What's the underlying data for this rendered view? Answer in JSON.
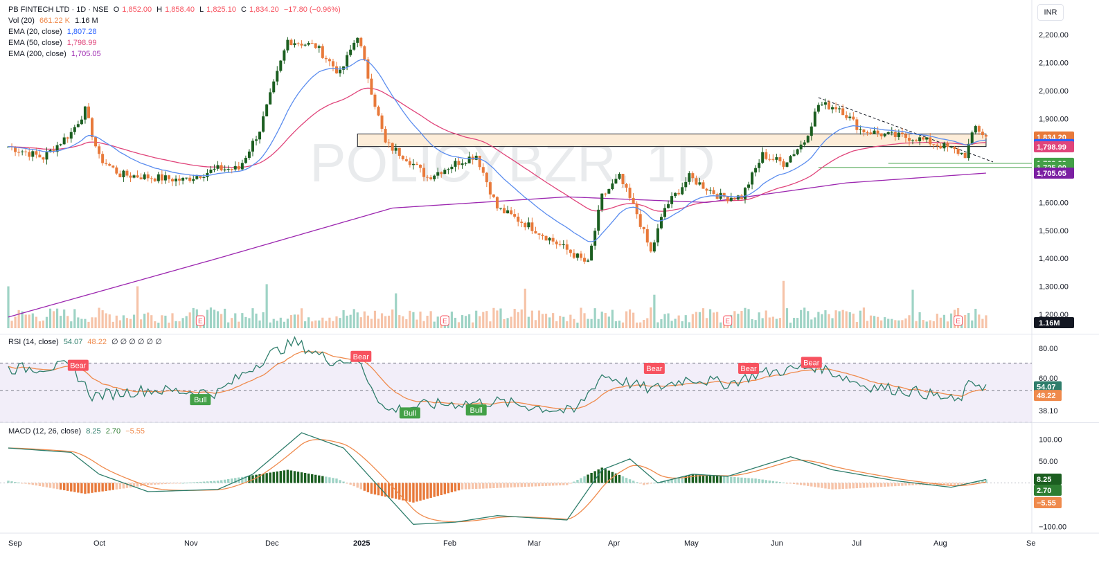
{
  "header": {
    "symbol_line": "PB FINTECH LTD · 1D · NSE",
    "o_label": "O",
    "o_value": "1,852.00",
    "h_label": "H",
    "h_value": "1,858.40",
    "l_label": "L",
    "l_value": "1,825.10",
    "c_label": "C",
    "c_value": "1,834.20",
    "change": "−17.80 (−0.96%)",
    "currency": "INR"
  },
  "indicators": {
    "vol_label": "Vol (20)",
    "vol_a": "661.22 K",
    "vol_b": "1.16 M",
    "ema20_label": "EMA (20, close)",
    "ema20_value": "1,807.28",
    "ema50_label": "EMA (50, close)",
    "ema50_value": "1,798.99",
    "ema200_label": "EMA (200, close)",
    "ema200_value": "1,705.05",
    "rsi_label": "RSI (14, close)",
    "rsi_value": "54.07",
    "rsi_ma": "48.22",
    "rsi_extra": "∅ ∅ ∅ ∅ ∅ ∅",
    "macd_label": "MACD (12, 26, close)",
    "macd_v1": "8.25",
    "macd_v2": "2.70",
    "macd_v3": "−5.55"
  },
  "watermark": "POLICYBZR, 1D",
  "colors": {
    "up": "#26a69a",
    "up_dark": "#1b5e20",
    "down": "#e8793a",
    "ema20": "#5b8def",
    "ema50": "#e0457b",
    "ema200": "#9c27b0",
    "rsi": "#2e7d6b",
    "rsi_ma": "#ef8a4c",
    "macd": "#2e7d6b",
    "signal": "#ef8a4c"
  },
  "chart_data": {
    "type": "candlestick",
    "x_ticks": [
      "Sep",
      "Oct",
      "Nov",
      "Dec",
      "2025",
      "Feb",
      "Mar",
      "Apr",
      "May",
      "Jun",
      "Jul",
      "Aug",
      "Se"
    ],
    "price_axis": {
      "ticks": [
        1200,
        1300,
        1400,
        1500,
        1600,
        1700,
        1800,
        1900,
        2000,
        2100,
        2200
      ],
      "tick_labels": [
        "1,200.00",
        "1,300.00",
        "1,400.00",
        "1,500.00",
        "1,600.00",
        "1,700.00",
        "1,800.00",
        "1,900.00",
        "2,000.00",
        "2,100.00",
        "2,200.00"
      ],
      "ylim": [
        1160,
        2250
      ]
    },
    "price_labels": [
      {
        "text": "1,834.20",
        "value": 1834.2,
        "color": "#e8793a"
      },
      {
        "text": "1,807.28",
        "value": 1807.28,
        "color": "#2962ff"
      },
      {
        "text": "1,798.99",
        "value": 1798.99,
        "color": "#e0457b"
      },
      {
        "text": "1,739.90",
        "value": 1739.9,
        "color": "#43a047"
      },
      {
        "text": "1,725.00",
        "value": 1725.0,
        "color": "#43a047"
      },
      {
        "text": "1,705.05",
        "value": 1705.05,
        "color": "#7b1fa2"
      }
    ],
    "volume_label": "1.16M",
    "close_anchors": [
      {
        "d": 0,
        "v": 1800
      },
      {
        "d": 10,
        "v": 1760
      },
      {
        "d": 18,
        "v": 1850
      },
      {
        "d": 22,
        "v": 1930
      },
      {
        "d": 26,
        "v": 1760
      },
      {
        "d": 32,
        "v": 1700
      },
      {
        "d": 50,
        "v": 1680
      },
      {
        "d": 60,
        "v": 1720
      },
      {
        "d": 66,
        "v": 1720
      },
      {
        "d": 72,
        "v": 1860
      },
      {
        "d": 80,
        "v": 2180
      },
      {
        "d": 88,
        "v": 2160
      },
      {
        "d": 95,
        "v": 2060
      },
      {
        "d": 100,
        "v": 2200
      },
      {
        "d": 104,
        "v": 2000
      },
      {
        "d": 108,
        "v": 1810
      },
      {
        "d": 114,
        "v": 1760
      },
      {
        "d": 120,
        "v": 1690
      },
      {
        "d": 128,
        "v": 1740
      },
      {
        "d": 134,
        "v": 1770
      },
      {
        "d": 140,
        "v": 1580
      },
      {
        "d": 150,
        "v": 1510
      },
      {
        "d": 160,
        "v": 1430
      },
      {
        "d": 166,
        "v": 1380
      },
      {
        "d": 170,
        "v": 1620
      },
      {
        "d": 175,
        "v": 1690
      },
      {
        "d": 180,
        "v": 1560
      },
      {
        "d": 184,
        "v": 1420
      },
      {
        "d": 188,
        "v": 1580
      },
      {
        "d": 195,
        "v": 1690
      },
      {
        "d": 204,
        "v": 1620
      },
      {
        "d": 210,
        "v": 1620
      },
      {
        "d": 216,
        "v": 1770
      },
      {
        "d": 222,
        "v": 1740
      },
      {
        "d": 228,
        "v": 1820
      },
      {
        "d": 232,
        "v": 1950
      },
      {
        "d": 238,
        "v": 1940
      },
      {
        "d": 244,
        "v": 1860
      },
      {
        "d": 252,
        "v": 1840
      },
      {
        "d": 260,
        "v": 1830
      },
      {
        "d": 268,
        "v": 1800
      },
      {
        "d": 274,
        "v": 1770
      },
      {
        "d": 277,
        "v": 1870
      },
      {
        "d": 280,
        "v": 1834
      }
    ],
    "ema200_anchors": [
      {
        "d": 0,
        "v": 1190
      },
      {
        "d": 60,
        "v": 1400
      },
      {
        "d": 110,
        "v": 1580
      },
      {
        "d": 160,
        "v": 1620
      },
      {
        "d": 200,
        "v": 1600
      },
      {
        "d": 240,
        "v": 1670
      },
      {
        "d": 280,
        "v": 1705
      }
    ],
    "zone": {
      "from_day": 100,
      "to_day": 280,
      "low": 1800,
      "high": 1845
    },
    "support_line": 1725,
    "support2": 1740,
    "trendline": [
      {
        "d": 232,
        "v": 1975
      },
      {
        "d": 282,
        "v": 1745
      }
    ],
    "earnings_markers": [
      {
        "day": 55,
        "text": "E"
      },
      {
        "day": 125,
        "text": "E"
      },
      {
        "day": 206,
        "text": "E"
      },
      {
        "day": 272,
        "text": "E"
      }
    ],
    "rsi": {
      "ticks": [
        38.1,
        51.61,
        60,
        80
      ],
      "tick_labels": [
        "38.10",
        "51.61",
        "60.00",
        "80.00"
      ],
      "band": [
        30,
        70
      ],
      "ylim": [
        32,
        86
      ],
      "anchors": [
        {
          "d": 0,
          "v": 66
        },
        {
          "d": 18,
          "v": 68
        },
        {
          "d": 24,
          "v": 48
        },
        {
          "d": 40,
          "v": 52
        },
        {
          "d": 60,
          "v": 50
        },
        {
          "d": 75,
          "v": 76
        },
        {
          "d": 82,
          "v": 84
        },
        {
          "d": 92,
          "v": 72
        },
        {
          "d": 100,
          "v": 72
        },
        {
          "d": 108,
          "v": 38
        },
        {
          "d": 120,
          "v": 42
        },
        {
          "d": 140,
          "v": 44
        },
        {
          "d": 162,
          "v": 37
        },
        {
          "d": 170,
          "v": 62
        },
        {
          "d": 184,
          "v": 52
        },
        {
          "d": 195,
          "v": 60
        },
        {
          "d": 206,
          "v": 56
        },
        {
          "d": 215,
          "v": 63
        },
        {
          "d": 232,
          "v": 68
        },
        {
          "d": 245,
          "v": 55
        },
        {
          "d": 262,
          "v": 50
        },
        {
          "d": 272,
          "v": 44
        },
        {
          "d": 276,
          "v": 58
        },
        {
          "d": 280,
          "v": 54
        }
      ],
      "labels": [
        {
          "text": "Bear",
          "day": 20,
          "value": 68,
          "type": "bear"
        },
        {
          "text": "Bull",
          "day": 55,
          "value": 45,
          "type": "bull"
        },
        {
          "text": "Bear",
          "day": 101,
          "value": 74,
          "type": "bear"
        },
        {
          "text": "Bull",
          "day": 115,
          "value": 36,
          "type": "bull"
        },
        {
          "text": "Bull",
          "day": 134,
          "value": 38,
          "type": "bull"
        },
        {
          "text": "Bear",
          "day": 185,
          "value": 66,
          "type": "bear"
        },
        {
          "text": "Bear",
          "day": 212,
          "value": 66,
          "type": "bear"
        },
        {
          "text": "Bear",
          "day": 230,
          "value": 70,
          "type": "bear"
        }
      ],
      "value_labels": [
        {
          "text": "54.07",
          "value": 54.07,
          "color": "#2e7d6b"
        },
        {
          "text": "48.22",
          "value": 48.22,
          "color": "#ef8a4c"
        }
      ]
    },
    "macd": {
      "ticks": [
        -100,
        50,
        100
      ],
      "tick_labels": [
        "−100.00",
        "50.00",
        "100.00"
      ],
      "ylim": [
        -112,
        115
      ],
      "macd_anchors": [
        {
          "d": 0,
          "v": 80
        },
        {
          "d": 18,
          "v": 70
        },
        {
          "d": 26,
          "v": 20
        },
        {
          "d": 40,
          "v": -20
        },
        {
          "d": 60,
          "v": -15
        },
        {
          "d": 70,
          "v": 20
        },
        {
          "d": 84,
          "v": 115
        },
        {
          "d": 96,
          "v": 80
        },
        {
          "d": 104,
          "v": 10
        },
        {
          "d": 116,
          "v": -95
        },
        {
          "d": 128,
          "v": -90
        },
        {
          "d": 140,
          "v": -75
        },
        {
          "d": 160,
          "v": -85
        },
        {
          "d": 170,
          "v": 30
        },
        {
          "d": 178,
          "v": 55
        },
        {
          "d": 186,
          "v": 0
        },
        {
          "d": 196,
          "v": 20
        },
        {
          "d": 206,
          "v": 15
        },
        {
          "d": 224,
          "v": 60
        },
        {
          "d": 236,
          "v": 30
        },
        {
          "d": 254,
          "v": 5
        },
        {
          "d": 270,
          "v": -10
        },
        {
          "d": 280,
          "v": 8
        }
      ],
      "hist_anchors": [
        {
          "d": 0,
          "v": 5
        },
        {
          "d": 22,
          "v": -25
        },
        {
          "d": 40,
          "v": -5
        },
        {
          "d": 60,
          "v": 5
        },
        {
          "d": 80,
          "v": 30
        },
        {
          "d": 94,
          "v": 10
        },
        {
          "d": 104,
          "v": -25
        },
        {
          "d": 116,
          "v": -45
        },
        {
          "d": 130,
          "v": -15
        },
        {
          "d": 160,
          "v": -5
        },
        {
          "d": 170,
          "v": 35
        },
        {
          "d": 182,
          "v": -5
        },
        {
          "d": 196,
          "v": 20
        },
        {
          "d": 214,
          "v": 10
        },
        {
          "d": 236,
          "v": -15
        },
        {
          "d": 260,
          "v": -5
        },
        {
          "d": 274,
          "v": -5
        },
        {
          "d": 280,
          "v": 8
        }
      ],
      "value_labels": [
        {
          "text": "8.25",
          "value": 8.25,
          "color": "#1b5e20"
        },
        {
          "text": "2.70",
          "value": 2.7,
          "color": "#2e7d32"
        },
        {
          "text": "−5.55",
          "value": -5.55,
          "color": "#ef8a4c"
        }
      ]
    }
  }
}
